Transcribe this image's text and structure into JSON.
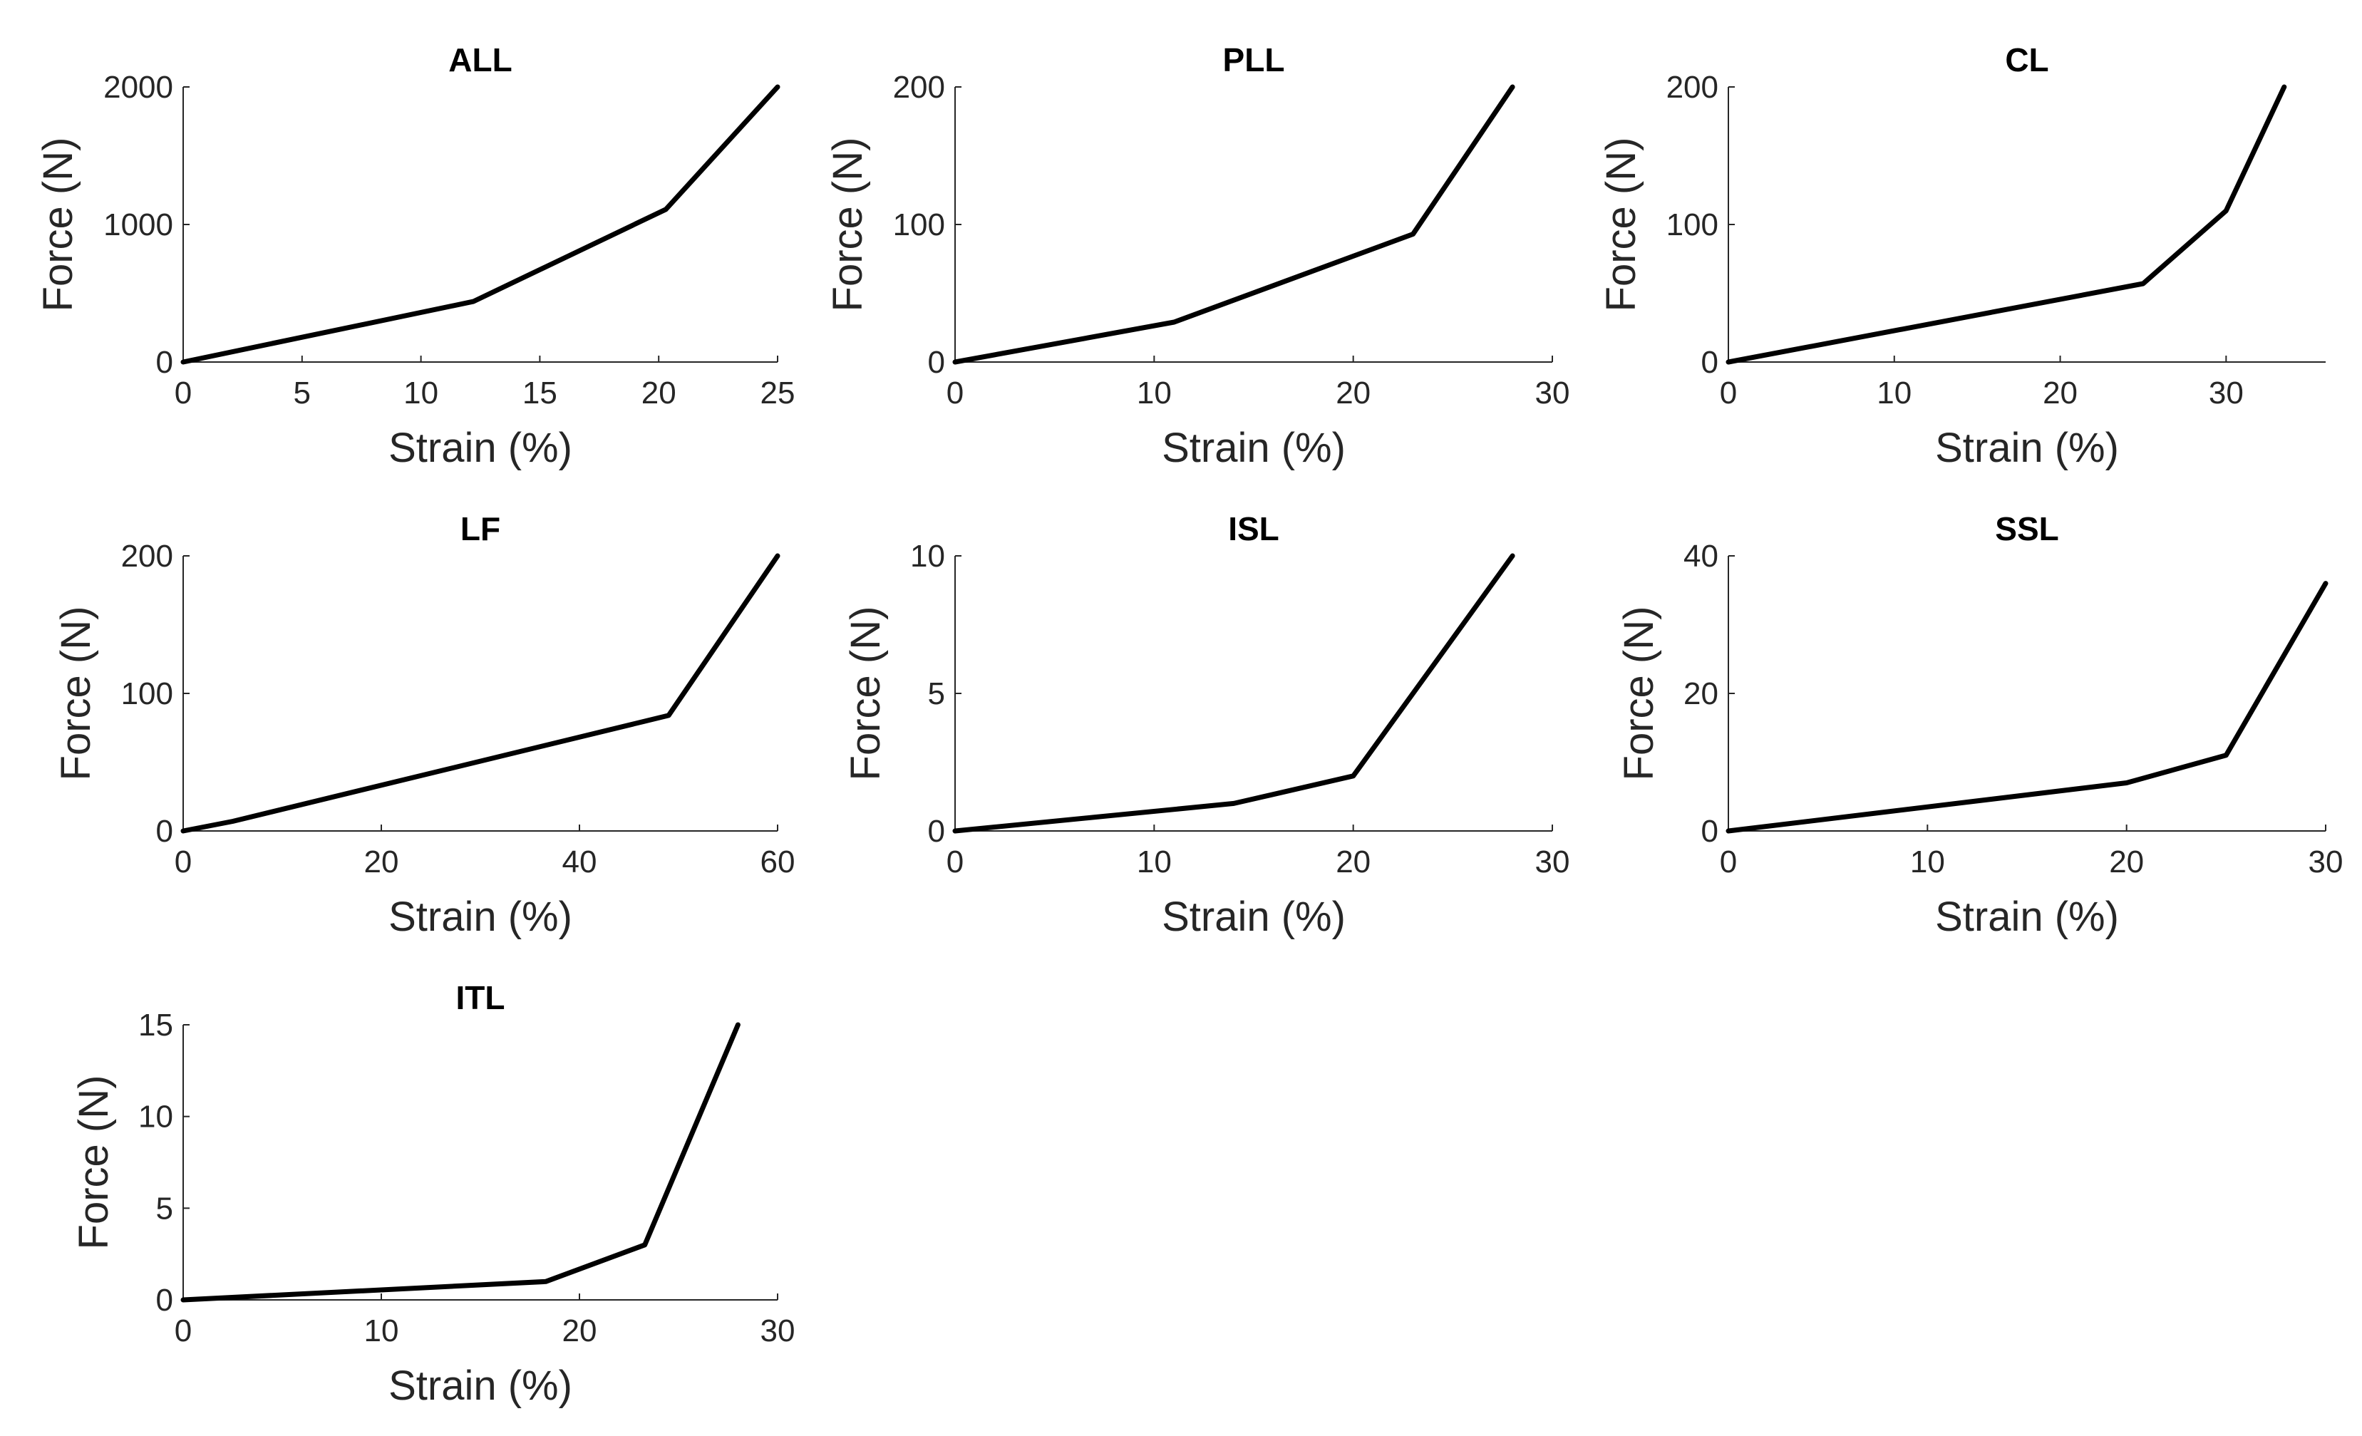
{
  "chart_data": [
    {
      "type": "line",
      "title": "ALL",
      "xlabel": "Strain (%)",
      "ylabel": "Force (N)",
      "xlim": [
        0,
        25
      ],
      "ylim": [
        0,
        2000
      ],
      "xticks": [
        "0",
        "5",
        "10",
        "15",
        "20",
        "25"
      ],
      "yticks": [
        "0",
        "1000",
        "2000"
      ],
      "series": [
        {
          "name": "ALL",
          "x": [
            0,
            12.2,
            20.3,
            25
          ],
          "y": [
            0,
            440,
            1110,
            2000
          ]
        }
      ]
    },
    {
      "type": "line",
      "title": "PLL",
      "xlabel": "Strain (%)",
      "ylabel": "Force (N)",
      "xlim": [
        0,
        30
      ],
      "ylim": [
        0,
        200
      ],
      "xticks": [
        "0",
        "10",
        "20",
        "30"
      ],
      "yticks": [
        "0",
        "100",
        "200"
      ],
      "series": [
        {
          "name": "PLL",
          "x": [
            0,
            11,
            23,
            28
          ],
          "y": [
            0,
            29,
            93,
            200
          ]
        }
      ]
    },
    {
      "type": "line",
      "title": "CL",
      "xlabel": "Strain (%)",
      "ylabel": "Force (N)",
      "xlim": [
        0,
        36
      ],
      "ylim": [
        0,
        200
      ],
      "xticks": [
        "0",
        "10",
        "20",
        "30"
      ],
      "yticks": [
        "0",
        "100",
        "200"
      ],
      "series": [
        {
          "name": "CL",
          "x": [
            0,
            25,
            30,
            33.5
          ],
          "y": [
            0,
            57,
            110,
            200
          ]
        }
      ]
    },
    {
      "type": "line",
      "title": "LF",
      "xlabel": "Strain (%)",
      "ylabel": "Force (N)",
      "xlim": [
        0,
        60
      ],
      "ylim": [
        0,
        200
      ],
      "xticks": [
        "0",
        "20",
        "40",
        "60"
      ],
      "yticks": [
        "0",
        "100",
        "200"
      ],
      "series": [
        {
          "name": "LF",
          "x": [
            0,
            5,
            49,
            60
          ],
          "y": [
            0,
            7,
            84,
            200
          ]
        }
      ]
    },
    {
      "type": "line",
      "title": "ISL",
      "xlabel": "Strain (%)",
      "ylabel": "Force (N)",
      "xlim": [
        0,
        30
      ],
      "ylim": [
        0,
        10
      ],
      "xticks": [
        "0",
        "10",
        "20",
        "30"
      ],
      "yticks": [
        "0",
        "5",
        "10"
      ],
      "series": [
        {
          "name": "ISL",
          "x": [
            0,
            14,
            20,
            28
          ],
          "y": [
            0,
            1,
            2,
            10
          ]
        }
      ]
    },
    {
      "type": "line",
      "title": "SSL",
      "xlabel": "Strain (%)",
      "ylabel": "Force (N)",
      "xlim": [
        0,
        30
      ],
      "ylim": [
        0,
        40
      ],
      "xticks": [
        "0",
        "10",
        "20",
        "30"
      ],
      "yticks": [
        "0",
        "20",
        "40"
      ],
      "series": [
        {
          "name": "SSL",
          "x": [
            0,
            20,
            25,
            30
          ],
          "y": [
            0,
            7,
            11,
            36
          ]
        }
      ]
    },
    {
      "type": "line",
      "title": "ITL",
      "xlabel": "Strain (%)",
      "ylabel": "Force (N)",
      "xlim": [
        0,
        30
      ],
      "ylim": [
        0,
        15
      ],
      "xticks": [
        "0",
        "10",
        "20",
        "30"
      ],
      "yticks": [
        "0",
        "5",
        "10",
        "15"
      ],
      "series": [
        {
          "name": "ITL",
          "x": [
            0,
            18.3,
            23.3,
            28
          ],
          "y": [
            0,
            1,
            3,
            15
          ]
        }
      ]
    }
  ]
}
